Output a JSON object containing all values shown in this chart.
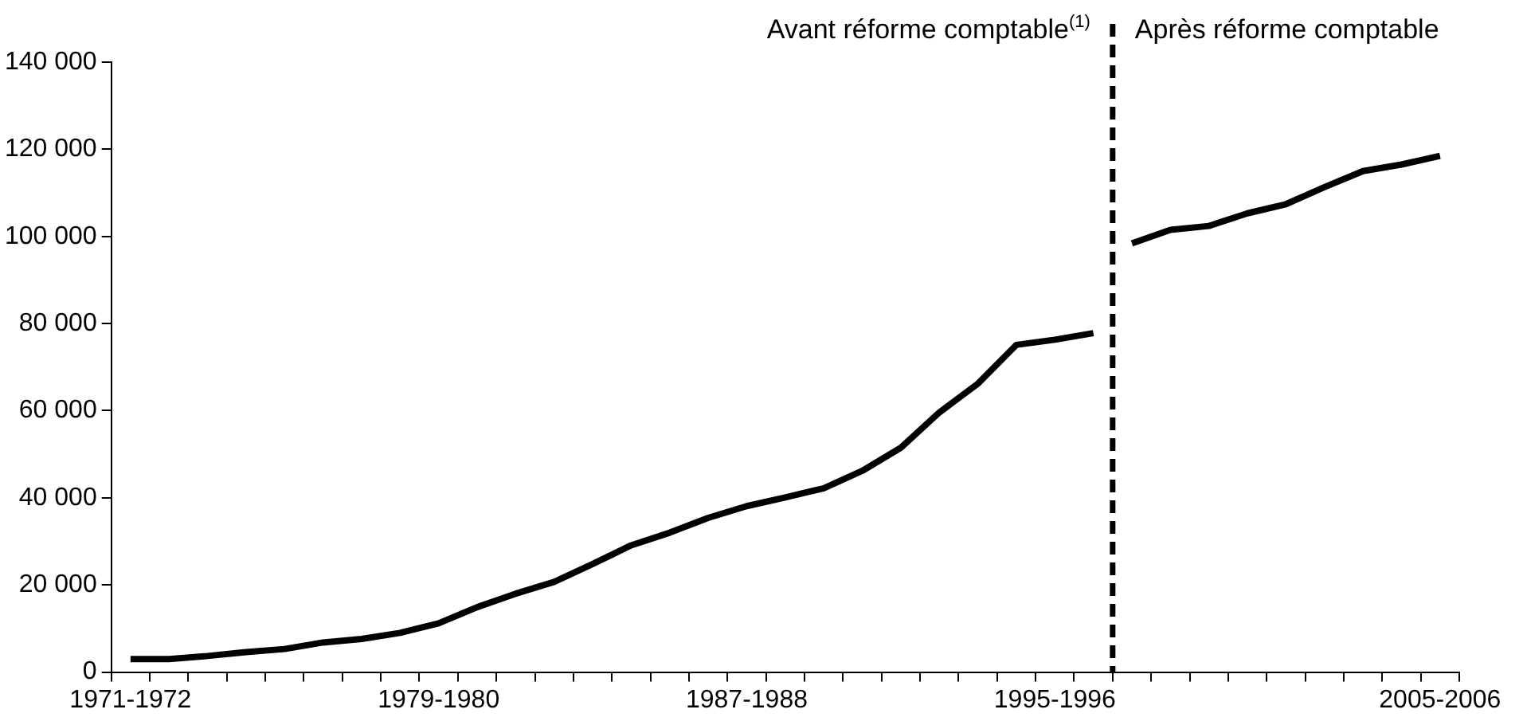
{
  "chart_data": {
    "type": "line",
    "categories": [
      "1971-1972",
      null,
      null,
      null,
      null,
      null,
      null,
      null,
      "1979-1980",
      null,
      null,
      null,
      null,
      null,
      null,
      null,
      "1987-1988",
      null,
      null,
      null,
      null,
      null,
      null,
      null,
      "1995-1996",
      null,
      null,
      null,
      null,
      null,
      null,
      null,
      null,
      null,
      "2005-2006"
    ],
    "series": [
      {
        "color": "#000000",
        "values": [
          3000,
          3000,
          3700,
          4600,
          5300,
          6800,
          7600,
          9000,
          11200,
          14900,
          18000,
          20700,
          24800,
          29100,
          32000,
          35400,
          38100,
          40100,
          42200,
          46200,
          51500,
          59600,
          66200,
          75100,
          76300,
          77800,
          null,
          null,
          null,
          null,
          null,
          null,
          null,
          null,
          null
        ]
      },
      {
        "color": "#000000",
        "values": [
          null,
          null,
          null,
          null,
          null,
          null,
          null,
          null,
          null,
          null,
          null,
          null,
          null,
          null,
          null,
          null,
          null,
          null,
          null,
          null,
          null,
          null,
          null,
          null,
          null,
          null,
          98400,
          101500,
          102400,
          105300,
          107400,
          111300,
          115000,
          116500,
          118500
        ]
      }
    ],
    "ylim": [
      0,
      140000
    ],
    "yticks": [
      {
        "value": 0,
        "label": "0"
      },
      {
        "value": 20000,
        "label": "20 000"
      },
      {
        "value": 40000,
        "label": "40 000"
      },
      {
        "value": 60000,
        "label": "60 000"
      },
      {
        "value": 80000,
        "label": "80 000"
      },
      {
        "value": 100000,
        "label": "100 000"
      },
      {
        "value": 120000,
        "label": "120 000"
      },
      {
        "value": 140000,
        "label": "140 000"
      }
    ],
    "annotations": [
      "Avant réforme comptable$^{(1)}$",
      "Après réforme comptable"
    ],
    "grid": false,
    "legend": false,
    "marker": "none",
    "line_style": "solid"
  }
}
